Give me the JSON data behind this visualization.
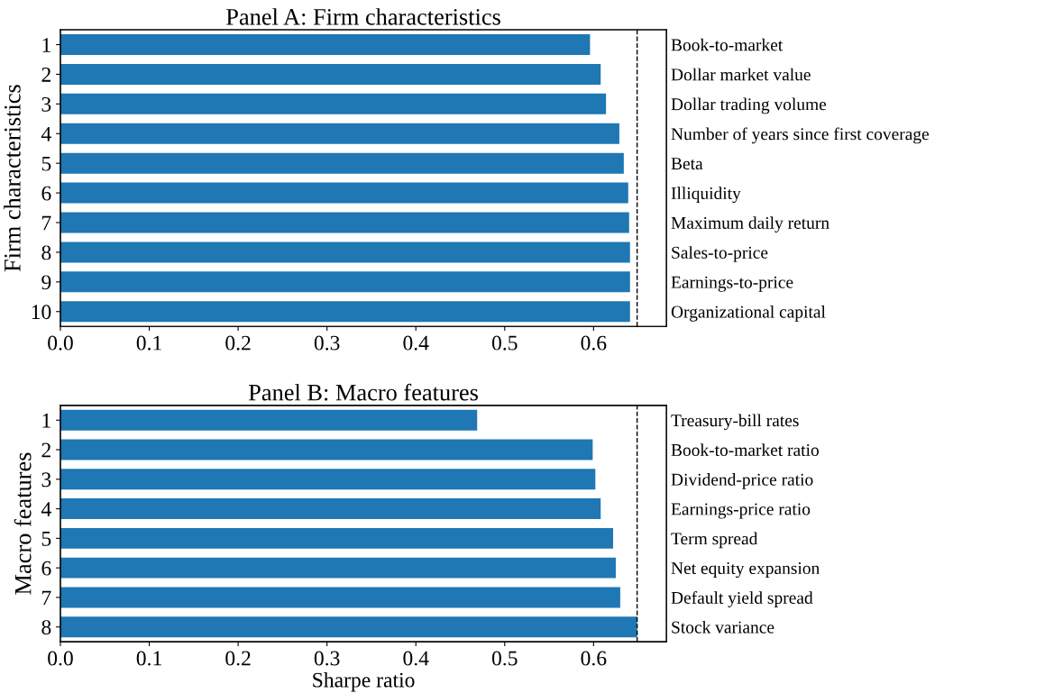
{
  "chart_data": [
    {
      "type": "bar",
      "orientation": "horizontal",
      "title": "Panel A: Firm characteristics",
      "ylabel": "Firm characteristics",
      "categories": [
        "1",
        "2",
        "3",
        "4",
        "5",
        "6",
        "7",
        "8",
        "9",
        "10"
      ],
      "y2_categories": [
        "Book-to-market",
        "Dollar market value",
        "Dollar trading volume",
        "Number of years since first coverage",
        "Beta",
        "Illiquidity",
        "Maximum daily return",
        "Sales-to-price",
        "Earnings-to-price",
        "Organizational capital"
      ],
      "values": [
        0.596,
        0.608,
        0.614,
        0.629,
        0.634,
        0.639,
        0.64,
        0.641,
        0.641,
        0.641
      ],
      "color": "#1f77b4",
      "xlim": [
        0,
        0.682
      ],
      "xticks": [
        {
          "value": 0,
          "label": "0.0"
        },
        0.1,
        0.2,
        0.3,
        0.4,
        0.5,
        0.6
      ],
      "ref_lines": [
        {
          "axis": "x",
          "value": 0.649,
          "color": "#000000",
          "line_style": "dashed"
        }
      ],
      "grid": false,
      "legend": false
    },
    {
      "type": "bar",
      "orientation": "horizontal",
      "title": "Panel B: Macro features",
      "ylabel": "Macro features",
      "xlabel": "Sharpe ratio",
      "categories": [
        "1",
        "2",
        "3",
        "4",
        "5",
        "6",
        "7",
        "8"
      ],
      "y2_categories": [
        "Treasury-bill rates",
        "Book-to-market ratio",
        "Dividend-price ratio",
        "Earnings-price ratio",
        "Term spread",
        "Net equity expansion",
        "Default yield spread",
        "Stock variance"
      ],
      "values": [
        0.469,
        0.599,
        0.602,
        0.608,
        0.622,
        0.625,
        0.63,
        0.649
      ],
      "color": "#1f77b4",
      "xlim": [
        0,
        0.682
      ],
      "xticks": [
        {
          "value": 0,
          "label": "0.0"
        },
        0.1,
        0.2,
        0.3,
        0.4,
        0.5,
        0.6
      ],
      "ref_lines": [
        {
          "axis": "x",
          "value": 0.649,
          "color": "#000000",
          "line_style": "dashed"
        }
      ],
      "grid": false,
      "legend": false
    }
  ]
}
